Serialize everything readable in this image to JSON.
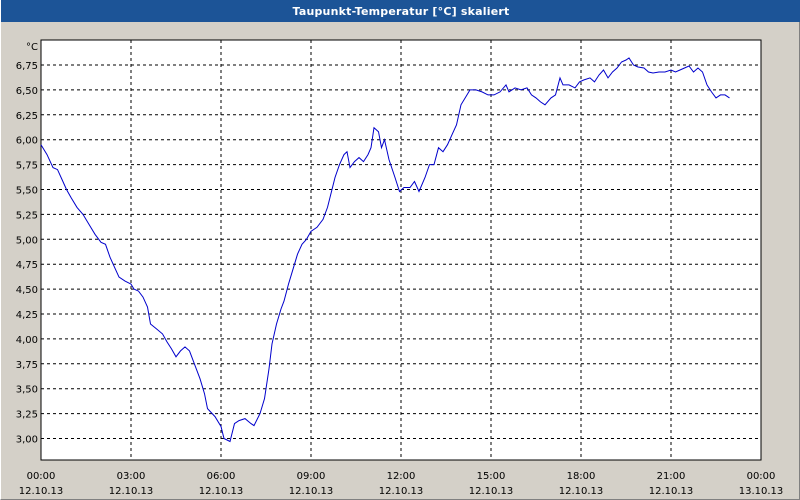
{
  "window": {
    "title": "Taupunkt-Temperatur [°C] skaliert"
  },
  "chart_data": {
    "type": "line",
    "title": "Taupunkt-Temperatur [°C] skaliert",
    "ylabel": "°C",
    "ylim": [
      2.75,
      7.0
    ],
    "grid": true,
    "line_color": "#0000cc",
    "y_ticks": [
      {
        "value": 6.75,
        "label": "6,75"
      },
      {
        "value": 6.5,
        "label": "6,50"
      },
      {
        "value": 6.25,
        "label": "6,25"
      },
      {
        "value": 6.0,
        "label": "6,00"
      },
      {
        "value": 5.75,
        "label": "5,75"
      },
      {
        "value": 5.5,
        "label": "5,50"
      },
      {
        "value": 5.25,
        "label": "5,25"
      },
      {
        "value": 5.0,
        "label": "5,00"
      },
      {
        "value": 4.75,
        "label": "4,75"
      },
      {
        "value": 4.5,
        "label": "4,50"
      },
      {
        "value": 4.25,
        "label": "4,25"
      },
      {
        "value": 4.0,
        "label": "4,00"
      },
      {
        "value": 3.75,
        "label": "3,75"
      },
      {
        "value": 3.5,
        "label": "3,50"
      },
      {
        "value": 3.25,
        "label": "3,25"
      },
      {
        "value": 3.0,
        "label": "3,00"
      }
    ],
    "x_ticks": [
      {
        "hours": 0,
        "time": "00:00",
        "date": "12.10.13"
      },
      {
        "hours": 3,
        "time": "03:00",
        "date": "12.10.13"
      },
      {
        "hours": 6,
        "time": "06:00",
        "date": "12.10.13"
      },
      {
        "hours": 9,
        "time": "09:00",
        "date": "12.10.13"
      },
      {
        "hours": 12,
        "time": "12:00",
        "date": "12.10.13"
      },
      {
        "hours": 15,
        "time": "15:00",
        "date": "12.10.13"
      },
      {
        "hours": 18,
        "time": "18:00",
        "date": "12.10.13"
      },
      {
        "hours": 21,
        "time": "21:00",
        "date": "12.10.13"
      },
      {
        "hours": 24,
        "time": "00:00",
        "date": "13.10.13"
      }
    ],
    "series": [
      {
        "values": [
          [
            0.0,
            5.95
          ],
          [
            0.2,
            5.85
          ],
          [
            0.4,
            5.72
          ],
          [
            0.55,
            5.7
          ],
          [
            0.7,
            5.6
          ],
          [
            0.85,
            5.5
          ],
          [
            1.0,
            5.42
          ],
          [
            1.2,
            5.32
          ],
          [
            1.4,
            5.25
          ],
          [
            1.6,
            5.15
          ],
          [
            1.8,
            5.05
          ],
          [
            2.0,
            4.97
          ],
          [
            2.15,
            4.95
          ],
          [
            2.3,
            4.82
          ],
          [
            2.45,
            4.72
          ],
          [
            2.6,
            4.62
          ],
          [
            2.8,
            4.58
          ],
          [
            3.0,
            4.55
          ],
          [
            3.1,
            4.5
          ],
          [
            3.25,
            4.48
          ],
          [
            3.4,
            4.42
          ],
          [
            3.55,
            4.32
          ],
          [
            3.65,
            4.15
          ],
          [
            3.85,
            4.1
          ],
          [
            4.05,
            4.05
          ],
          [
            4.2,
            3.97
          ],
          [
            4.35,
            3.9
          ],
          [
            4.5,
            3.82
          ],
          [
            4.65,
            3.88
          ],
          [
            4.8,
            3.92
          ],
          [
            4.95,
            3.88
          ],
          [
            5.15,
            3.72
          ],
          [
            5.3,
            3.6
          ],
          [
            5.45,
            3.45
          ],
          [
            5.55,
            3.3
          ],
          [
            5.8,
            3.22
          ],
          [
            6.0,
            3.12
          ],
          [
            6.1,
            3.0
          ],
          [
            6.3,
            2.97
          ],
          [
            6.45,
            3.15
          ],
          [
            6.6,
            3.18
          ],
          [
            6.8,
            3.2
          ],
          [
            7.0,
            3.15
          ],
          [
            7.1,
            3.13
          ],
          [
            7.3,
            3.25
          ],
          [
            7.45,
            3.4
          ],
          [
            7.6,
            3.7
          ],
          [
            7.7,
            3.95
          ],
          [
            7.85,
            4.15
          ],
          [
            8.0,
            4.3
          ],
          [
            8.1,
            4.38
          ],
          [
            8.25,
            4.55
          ],
          [
            8.4,
            4.7
          ],
          [
            8.55,
            4.85
          ],
          [
            8.7,
            4.95
          ],
          [
            8.85,
            5.0
          ],
          [
            9.0,
            5.08
          ],
          [
            9.2,
            5.12
          ],
          [
            9.4,
            5.2
          ],
          [
            9.55,
            5.32
          ],
          [
            9.7,
            5.5
          ],
          [
            9.8,
            5.62
          ],
          [
            9.95,
            5.75
          ],
          [
            10.1,
            5.85
          ],
          [
            10.2,
            5.88
          ],
          [
            10.3,
            5.72
          ],
          [
            10.45,
            5.78
          ],
          [
            10.6,
            5.82
          ],
          [
            10.75,
            5.78
          ],
          [
            10.9,
            5.85
          ],
          [
            11.0,
            5.92
          ],
          [
            11.1,
            6.12
          ],
          [
            11.25,
            6.08
          ],
          [
            11.35,
            5.92
          ],
          [
            11.45,
            6.0
          ],
          [
            11.6,
            5.8
          ],
          [
            11.8,
            5.62
          ],
          [
            11.95,
            5.48
          ],
          [
            12.1,
            5.52
          ],
          [
            12.3,
            5.52
          ],
          [
            12.45,
            5.58
          ],
          [
            12.6,
            5.48
          ],
          [
            12.8,
            5.62
          ],
          [
            12.95,
            5.75
          ],
          [
            13.1,
            5.75
          ],
          [
            13.25,
            5.92
          ],
          [
            13.4,
            5.88
          ],
          [
            13.55,
            5.95
          ],
          [
            13.7,
            6.05
          ],
          [
            13.85,
            6.15
          ],
          [
            14.0,
            6.35
          ],
          [
            14.2,
            6.45
          ],
          [
            14.3,
            6.5
          ],
          [
            14.5,
            6.5
          ],
          [
            14.7,
            6.48
          ],
          [
            14.9,
            6.45
          ],
          [
            15.1,
            6.45
          ],
          [
            15.3,
            6.48
          ],
          [
            15.5,
            6.55
          ],
          [
            15.6,
            6.48
          ],
          [
            15.8,
            6.52
          ],
          [
            16.0,
            6.5
          ],
          [
            16.2,
            6.52
          ],
          [
            16.35,
            6.45
          ],
          [
            16.5,
            6.42
          ],
          [
            16.65,
            6.38
          ],
          [
            16.8,
            6.35
          ],
          [
            17.0,
            6.42
          ],
          [
            17.15,
            6.45
          ],
          [
            17.3,
            6.62
          ],
          [
            17.4,
            6.55
          ],
          [
            17.6,
            6.55
          ],
          [
            17.8,
            6.52
          ],
          [
            17.95,
            6.58
          ],
          [
            18.1,
            6.6
          ],
          [
            18.3,
            6.62
          ],
          [
            18.45,
            6.58
          ],
          [
            18.6,
            6.65
          ],
          [
            18.75,
            6.7
          ],
          [
            18.9,
            6.62
          ],
          [
            19.05,
            6.68
          ],
          [
            19.2,
            6.72
          ],
          [
            19.35,
            6.78
          ],
          [
            19.5,
            6.8
          ],
          [
            19.6,
            6.82
          ],
          [
            19.75,
            6.75
          ],
          [
            19.9,
            6.73
          ],
          [
            20.1,
            6.72
          ],
          [
            20.25,
            6.68
          ],
          [
            20.4,
            6.67
          ],
          [
            20.6,
            6.68
          ],
          [
            20.8,
            6.68
          ],
          [
            21.0,
            6.7
          ],
          [
            21.15,
            6.68
          ],
          [
            21.3,
            6.7
          ],
          [
            21.45,
            6.72
          ],
          [
            21.6,
            6.74
          ],
          [
            21.75,
            6.68
          ],
          [
            21.9,
            6.72
          ],
          [
            22.05,
            6.68
          ],
          [
            22.2,
            6.55
          ],
          [
            22.35,
            6.48
          ],
          [
            22.5,
            6.42
          ],
          [
            22.65,
            6.45
          ],
          [
            22.8,
            6.45
          ],
          [
            22.95,
            6.42
          ]
        ]
      }
    ]
  }
}
